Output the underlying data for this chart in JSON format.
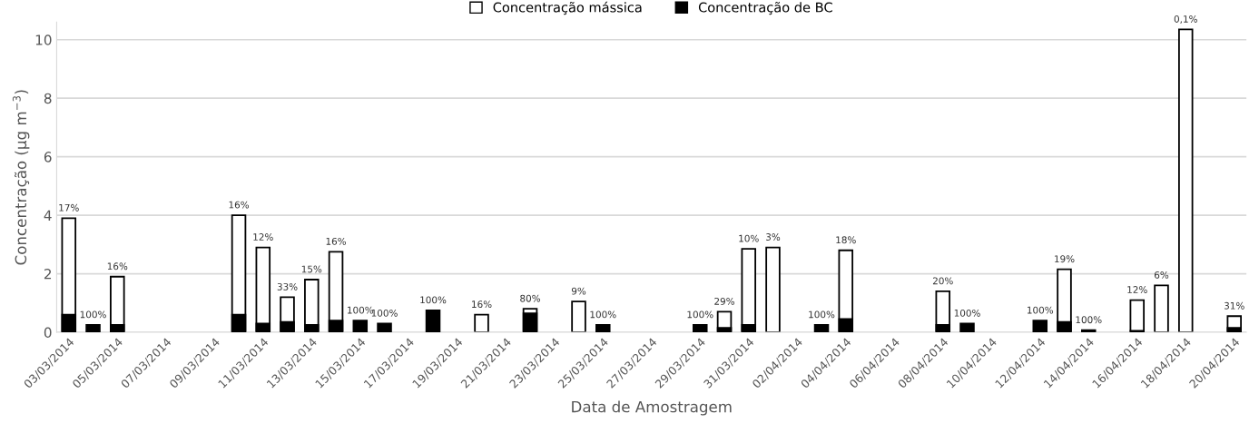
{
  "chart_data": {
    "type": "bar",
    "xlabel": "Data de Amostragem",
    "ylabel": "Concentração (µg m$^{−3}$)",
    "x": [
      "2014-03-03",
      "2014-03-04",
      "2014-03-05",
      "2014-03-06",
      "2014-03-07",
      "2014-03-08",
      "2014-03-09",
      "2014-03-10",
      "2014-03-11",
      "2014-03-12",
      "2014-03-13",
      "2014-03-14",
      "2014-03-15",
      "2014-03-16",
      "2014-03-17",
      "2014-03-18",
      "2014-03-19",
      "2014-03-20",
      "2014-03-21",
      "2014-03-22",
      "2014-03-23",
      "2014-03-24",
      "2014-03-25",
      "2014-03-26",
      "2014-03-27",
      "2014-03-28",
      "2014-03-29",
      "2014-03-30",
      "2014-03-31",
      "2014-04-01",
      "2014-04-02",
      "2014-04-03",
      "2014-04-04",
      "2014-04-05",
      "2014-04-06",
      "2014-04-07",
      "2014-04-08",
      "2014-04-09",
      "2014-04-10",
      "2014-04-11",
      "2014-04-12",
      "2014-04-13",
      "2014-04-14",
      "2014-04-15",
      "2014-04-16",
      "2014-04-17",
      "2014-04-18",
      "2014-04-19",
      "2014-04-20"
    ],
    "xlim": [
      "2014-03-02T12:00",
      "2014-04-20T12:00"
    ],
    "xticks": [
      {
        "value": "2014-03-03",
        "label": "03/03/2014"
      },
      {
        "value": "2014-03-05",
        "label": "05/03/2014"
      },
      {
        "value": "2014-03-07",
        "label": "07/03/2014"
      },
      {
        "value": "2014-03-09",
        "label": "09/03/2014"
      },
      {
        "value": "2014-03-11",
        "label": "11/03/2014"
      },
      {
        "value": "2014-03-13",
        "label": "13/03/2014"
      },
      {
        "value": "2014-03-15",
        "label": "15/03/2014"
      },
      {
        "value": "2014-03-17",
        "label": "17/03/2014"
      },
      {
        "value": "2014-03-19",
        "label": "19/03/2014"
      },
      {
        "value": "2014-03-21",
        "label": "21/03/2014"
      },
      {
        "value": "2014-03-23",
        "label": "23/03/2014"
      },
      {
        "value": "2014-03-25",
        "label": "25/03/2014"
      },
      {
        "value": "2014-03-27",
        "label": "27/03/2014"
      },
      {
        "value": "2014-03-29",
        "label": "29/03/2014"
      },
      {
        "value": "2014-03-31",
        "label": "31/03/2014"
      },
      {
        "value": "2014-04-02",
        "label": "02/04/2014"
      },
      {
        "value": "2014-04-04",
        "label": "04/04/2014"
      },
      {
        "value": "2014-04-06",
        "label": "06/04/2014"
      },
      {
        "value": "2014-04-08",
        "label": "08/04/2014"
      },
      {
        "value": "2014-04-10",
        "label": "10/04/2014"
      },
      {
        "value": "2014-04-12",
        "label": "12/04/2014"
      },
      {
        "value": "2014-04-14",
        "label": "14/04/2014"
      },
      {
        "value": "2014-04-16",
        "label": "16/04/2014"
      },
      {
        "value": "2014-04-18",
        "label": "18/04/2014"
      },
      {
        "value": "2014-04-20",
        "label": "20/04/2014"
      }
    ],
    "series": [
      {
        "name": "Concentração mássica",
        "color": "#ffffff",
        "values": [
          3.9,
          null,
          1.9,
          null,
          null,
          null,
          null,
          4.0,
          2.9,
          1.2,
          1.8,
          2.75,
          null,
          null,
          null,
          null,
          null,
          0.6,
          null,
          0.8,
          null,
          1.05,
          null,
          null,
          null,
          null,
          null,
          0.7,
          2.85,
          2.9,
          null,
          null,
          2.8,
          null,
          null,
          null,
          1.4,
          null,
          null,
          null,
          null,
          2.15,
          null,
          null,
          1.1,
          1.6,
          10.35,
          null,
          0.55
        ]
      },
      {
        "name": "Concentração de BC",
        "color": "#000000",
        "values": [
          0.6,
          0.25,
          0.25,
          null,
          null,
          null,
          null,
          0.6,
          0.3,
          0.35,
          0.25,
          0.4,
          0.4,
          0.3,
          null,
          0.75,
          null,
          null,
          null,
          0.65,
          null,
          null,
          0.25,
          null,
          null,
          null,
          0.25,
          0.15,
          0.25,
          null,
          null,
          0.25,
          0.45,
          null,
          null,
          null,
          0.25,
          0.3,
          null,
          null,
          0.4,
          0.35,
          0.07,
          null,
          0.05,
          null,
          null,
          null,
          0.15
        ]
      }
    ],
    "annotations": [
      {
        "text": "17%",
        "x": "2014-03-03",
        "y": 3.9
      },
      {
        "text": "100%",
        "x": "2014-03-04",
        "y": 0.25
      },
      {
        "text": "16%",
        "x": "2014-03-05",
        "y": 1.9
      },
      {
        "text": "16%",
        "x": "2014-03-10",
        "y": 4.0
      },
      {
        "text": "12%",
        "x": "2014-03-11",
        "y": 2.9
      },
      {
        "text": "33%",
        "x": "2014-03-12",
        "y": 1.2
      },
      {
        "text": "15%",
        "x": "2014-03-13",
        "y": 1.8
      },
      {
        "text": "16%",
        "x": "2014-03-14",
        "y": 2.75
      },
      {
        "text": "100%",
        "x": "2014-03-15",
        "y": 0.4
      },
      {
        "text": "100%",
        "x": "2014-03-16",
        "y": 0.3
      },
      {
        "text": "100%",
        "x": "2014-03-18",
        "y": 0.75
      },
      {
        "text": "16%",
        "x": "2014-03-20",
        "y": 0.6
      },
      {
        "text": "80%",
        "x": "2014-03-22",
        "y": 0.8
      },
      {
        "text": "9%",
        "x": "2014-03-24",
        "y": 1.05
      },
      {
        "text": "100%",
        "x": "2014-03-25",
        "y": 0.25
      },
      {
        "text": "100%",
        "x": "2014-03-29",
        "y": 0.25
      },
      {
        "text": "29%",
        "x": "2014-03-30",
        "y": 0.7
      },
      {
        "text": "10%",
        "x": "2014-03-31",
        "y": 2.85
      },
      {
        "text": "3%",
        "x": "2014-04-01",
        "y": 2.9
      },
      {
        "text": "100%",
        "x": "2014-04-03",
        "y": 0.25
      },
      {
        "text": "18%",
        "x": "2014-04-04",
        "y": 2.8
      },
      {
        "text": "20%",
        "x": "2014-04-08",
        "y": 1.4
      },
      {
        "text": "100%",
        "x": "2014-04-09",
        "y": 0.3
      },
      {
        "text": "100%",
        "x": "2014-04-12",
        "y": 0.4
      },
      {
        "text": "19%",
        "x": "2014-04-13",
        "y": 2.15
      },
      {
        "text": "100%",
        "x": "2014-04-14",
        "y": 0.07
      },
      {
        "text": "12%",
        "x": "2014-04-16",
        "y": 1.1
      },
      {
        "text": "6%",
        "x": "2014-04-17",
        "y": 1.6
      },
      {
        "text": "0,1%",
        "x": "2014-04-18",
        "y": 10.35
      },
      {
        "text": "31%",
        "x": "2014-04-20",
        "y": 0.55
      }
    ],
    "ylim": [
      0,
      10.6
    ],
    "yticks": [
      0,
      2,
      4,
      6,
      8,
      10
    ],
    "grid": "y",
    "legend": "top"
  }
}
